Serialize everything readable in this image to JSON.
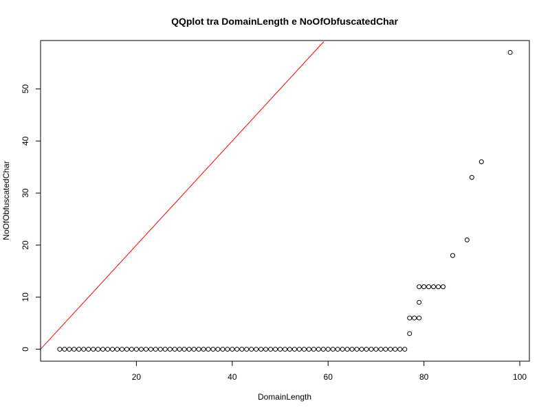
{
  "chart_data": {
    "type": "scatter",
    "title": "QQplot tra DomainLength e NoOfObfuscatedChar",
    "xlabel": "DomainLength",
    "ylabel": "NoOfObfuscatedChar",
    "xlim": [
      0,
      102
    ],
    "ylim": [
      -2.3,
      59.3
    ],
    "xticks": [
      20,
      40,
      60,
      80,
      100
    ],
    "yticks": [
      0,
      10,
      20,
      30,
      40,
      50
    ],
    "grid": false,
    "legend": "none",
    "point_color": "#000000",
    "reference_line": {
      "color": "#ff0000",
      "x": [
        0,
        59.1
      ],
      "y": [
        0,
        59.1
      ]
    },
    "zero_x_start": 4,
    "zero_x_end": 76,
    "zero_x_step": 1,
    "points": [
      {
        "x": 77,
        "y": 3
      },
      {
        "x": 77,
        "y": 6
      },
      {
        "x": 78,
        "y": 6
      },
      {
        "x": 79,
        "y": 6
      },
      {
        "x": 79,
        "y": 9
      },
      {
        "x": 79,
        "y": 12
      },
      {
        "x": 80,
        "y": 12
      },
      {
        "x": 81,
        "y": 12
      },
      {
        "x": 82,
        "y": 12
      },
      {
        "x": 83,
        "y": 12
      },
      {
        "x": 84,
        "y": 12
      },
      {
        "x": 86,
        "y": 18
      },
      {
        "x": 89,
        "y": 21
      },
      {
        "x": 90,
        "y": 33
      },
      {
        "x": 92,
        "y": 36
      },
      {
        "x": 98,
        "y": 57
      }
    ]
  }
}
